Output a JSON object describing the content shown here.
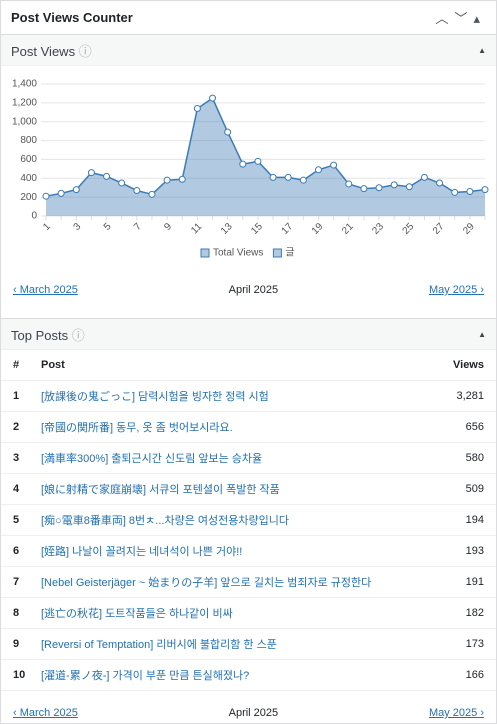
{
  "widget_title": "Post Views Counter",
  "post_views": {
    "heading": "Post Views",
    "prev": "‹ March 2025",
    "current": "April 2025",
    "next": "May 2025 ›"
  },
  "chart_data": {
    "type": "area",
    "categories": [
      "1",
      null,
      "3",
      null,
      "5",
      null,
      "7",
      null,
      "9",
      null,
      "11",
      null,
      "13",
      null,
      "15",
      null,
      "17",
      null,
      "19",
      null,
      "21",
      null,
      "23",
      null,
      "25",
      null,
      "27",
      null,
      "29",
      null
    ],
    "series": [
      {
        "name": "Total Views",
        "color": "#3b7bb5",
        "values": [
          210,
          240,
          280,
          460,
          420,
          350,
          270,
          230,
          380,
          390,
          1140,
          1250,
          890,
          550,
          580,
          410,
          410,
          380,
          490,
          540,
          340,
          290,
          300,
          330,
          310,
          410,
          350,
          250,
          260,
          280
        ]
      },
      {
        "name": "글",
        "color": "#3b7bb5",
        "values": [
          null,
          null,
          null,
          null,
          null,
          null,
          null,
          null,
          null,
          null,
          null,
          null,
          null,
          null,
          null,
          null,
          null,
          null,
          null,
          null,
          null,
          null,
          null,
          null,
          null,
          null,
          null,
          null,
          null,
          null
        ]
      }
    ],
    "ylim": [
      0,
      1400
    ],
    "yticks": [
      0,
      200,
      400,
      600,
      800,
      {
        "value": 1000,
        "label": "1,000"
      },
      {
        "value": 1200,
        "label": "1,200"
      },
      {
        "value": 1400,
        "label": "1,400"
      }
    ],
    "grid": true,
    "legend": "bottom"
  },
  "top_posts": {
    "heading": "Top Posts",
    "columns": [
      "#",
      "Post",
      "Views"
    ],
    "rows": [
      [
        "1",
        "[放課後の鬼ごっこ] 담력시험을 빙자한 정력 시험",
        "3,281"
      ],
      [
        "2",
        "[帝國の関所番] 동무, 옷 좀 벗어보시라요.",
        "656"
      ],
      [
        "3",
        "[満車率300%] 출퇴근시간 신도림 앞보는 승차율",
        "580"
      ],
      [
        "4",
        "[娘に射精で家庭崩壊] 서큐의 포텐셜이 폭발한 작품",
        "509"
      ],
      [
        "5",
        "[痴○電車8番車両] 8번ㅊ...차량은 여성전용차량입니다",
        "194"
      ],
      [
        "6",
        "[姪路] 나날이 꼴려지는 네녀석이 나쁜 거야!!",
        "193"
      ],
      [
        "7",
        "[Nebel Geisterjäger ~ 始まりの子羊] 앞으로 길치는 범죄자로 규정한다",
        "191"
      ],
      [
        "8",
        "[逃亡の秋花] 도트작품들은 하나같이 비싸",
        "182"
      ],
      [
        "9",
        "[Reversi of Temptation] 리버시에 불합리함 한 스푼",
        "173"
      ],
      [
        "10",
        "[濯道-累ノ夜-] 가격이 부푼 만큼 튼실해졌나?",
        "166"
      ]
    ],
    "prev": "‹ March 2025",
    "current": "April 2025",
    "next": "May 2025 ›"
  }
}
